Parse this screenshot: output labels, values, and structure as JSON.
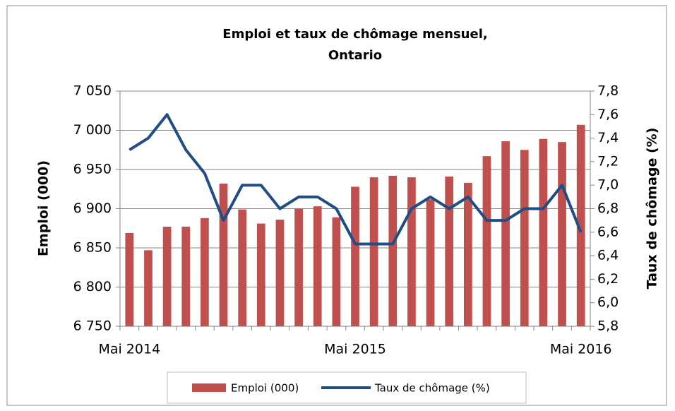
{
  "chart_data": {
    "type": "bar-line",
    "title": [
      "Emploi et taux de chômage mensuel,",
      "Ontario"
    ],
    "y_label": "Emploi (000)",
    "y2_label": "Taux de chômage (%)",
    "categories": [
      "Mai 2014",
      null,
      null,
      null,
      null,
      null,
      null,
      null,
      null,
      null,
      null,
      null,
      "Mai 2015",
      null,
      null,
      null,
      null,
      null,
      null,
      null,
      null,
      null,
      null,
      null,
      "Mai 2016"
    ],
    "series": [
      {
        "name": "Emploi (000)",
        "type": "bar",
        "color": "#c0504d",
        "axis": "y",
        "values": [
          6869,
          6847,
          6877,
          6877,
          6888,
          6932,
          6899,
          6881,
          6886,
          6900,
          6903,
          6889,
          6928,
          6940,
          6942,
          6940,
          6912,
          6941,
          6933,
          6967,
          6986,
          6975,
          6989,
          6985,
          7007
        ]
      },
      {
        "name": "Taux de chômage (%)",
        "type": "line",
        "color": "#1f4e85",
        "axis": "y2",
        "values": [
          7.3,
          7.4,
          7.6,
          7.3,
          7.1,
          6.7,
          7.0,
          7.0,
          6.8,
          6.9,
          6.9,
          6.8,
          6.5,
          6.5,
          6.5,
          6.8,
          6.9,
          6.8,
          6.9,
          6.7,
          6.7,
          6.8,
          6.8,
          7.0,
          6.6
        ]
      }
    ],
    "ylim": [
      6750,
      7050
    ],
    "yticks": [
      {
        "value": 6750,
        "label": "6 750"
      },
      {
        "value": 6800,
        "label": "6 800"
      },
      {
        "value": 6850,
        "label": "6 850"
      },
      {
        "value": 6900,
        "label": "6 900"
      },
      {
        "value": 6950,
        "label": "6 950"
      },
      {
        "value": 7000,
        "label": "7 000"
      },
      {
        "value": 7050,
        "label": "7 050"
      }
    ],
    "y2lim": [
      5.8,
      7.8
    ],
    "y2ticks": [
      {
        "value": 5.8,
        "label": "5,8"
      },
      {
        "value": 6.0,
        "label": "6,0"
      },
      {
        "value": 6.2,
        "label": "6,2"
      },
      {
        "value": 6.4,
        "label": "6,4"
      },
      {
        "value": 6.6,
        "label": "6,6"
      },
      {
        "value": 6.8,
        "label": "6,8"
      },
      {
        "value": 7.0,
        "label": "7,0"
      },
      {
        "value": 7.2,
        "label": "7,2"
      },
      {
        "value": 7.4,
        "label": "7,4"
      },
      {
        "value": 7.6,
        "label": "7,6"
      },
      {
        "value": 7.8,
        "label": "7,8"
      }
    ],
    "grid": true,
    "legend": "bottom"
  }
}
